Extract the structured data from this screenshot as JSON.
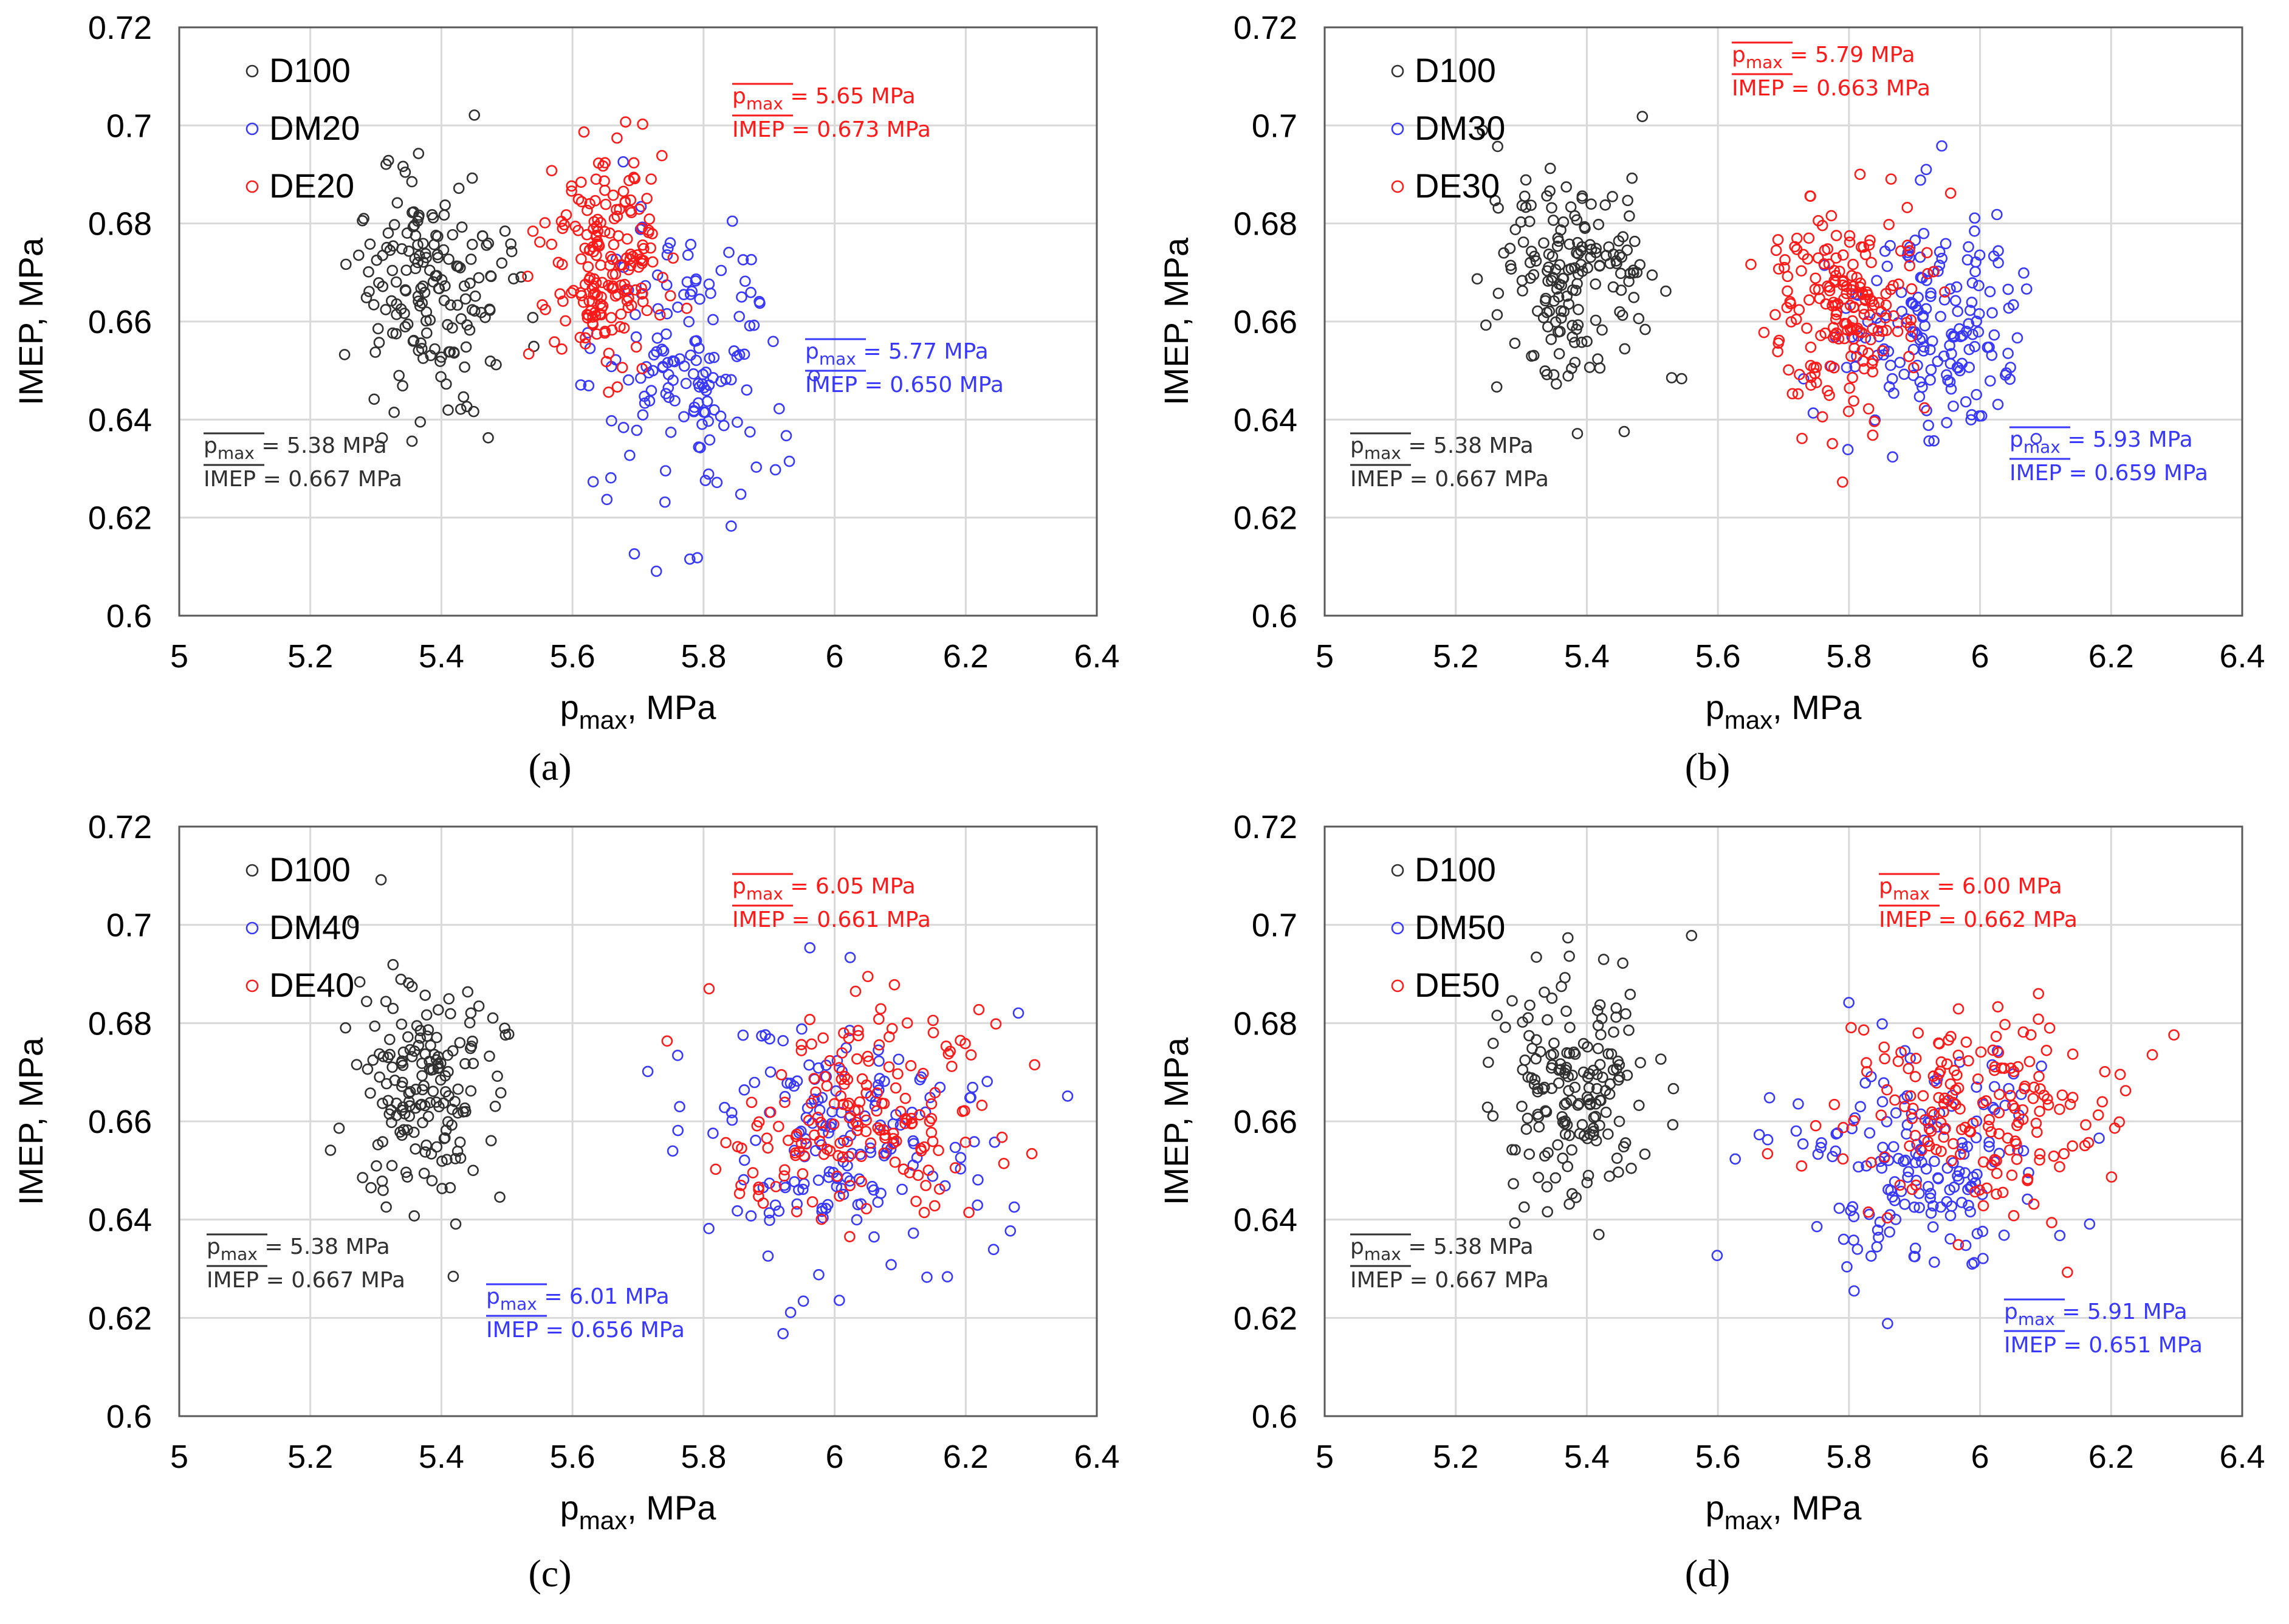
{
  "figure": {
    "colors": {
      "D100": "#303030",
      "DM": "#3838ff",
      "DE": "#ff1a1a",
      "grid": "#d9d9d9"
    }
  },
  "chart_data": [
    {
      "type": "scatter",
      "panel_label": "(a)",
      "xlabel": {
        "main": "p",
        "sub": "max",
        "rest": ", MPa"
      },
      "ylabel": "IMEP, MPa",
      "xlim": [
        5,
        6.4
      ],
      "ylim": [
        0.6,
        0.72
      ],
      "xticks": [
        "5",
        "5.2",
        "5.4",
        "5.6",
        "5.8",
        "6",
        "6.2",
        "6.4"
      ],
      "yticks": [
        "0.6",
        "0.62",
        "0.64",
        "0.66",
        "0.68",
        "0.7",
        "0.72"
      ],
      "legend_position": "top-left",
      "series": [
        {
          "name": "D100",
          "color": "#303030",
          "center": [
            5.38,
            0.667
          ],
          "spread": [
            0.06,
            0.012
          ],
          "n": 170
        },
        {
          "name": "DM20",
          "color": "#3838ff",
          "center": [
            5.77,
            0.65
          ],
          "spread": [
            0.07,
            0.014
          ],
          "n": 150
        },
        {
          "name": "DE20",
          "color": "#ff1a1a",
          "center": [
            5.65,
            0.673
          ],
          "spread": [
            0.045,
            0.011
          ],
          "n": 190
        }
      ],
      "annotations": [
        {
          "color": "#303030",
          "series": "D100",
          "pmax_label": "p",
          "pmax_sub": "max",
          "pmax_value": "= 5.38 MPa",
          "imep_label": "IMEP",
          "imep_value": "= 0.667 MPa"
        },
        {
          "color": "#3838ff",
          "series": "DM20",
          "pmax_label": "p",
          "pmax_sub": "max",
          "pmax_value": "= 5.77 MPa",
          "imep_label": "IMEP",
          "imep_value": "= 0.650 MPa"
        },
        {
          "color": "#ff1a1a",
          "series": "DE20",
          "pmax_label": "p",
          "pmax_sub": "max",
          "pmax_value": "= 5.65 MPa",
          "imep_label": "IMEP",
          "imep_value": "= 0.673 MPa"
        }
      ]
    },
    {
      "type": "scatter",
      "panel_label": "(b)",
      "xlabel": {
        "main": "p",
        "sub": "max",
        "rest": ", MPa"
      },
      "ylabel": "IMEP, MPa",
      "xlim": [
        5,
        6.4
      ],
      "ylim": [
        0.6,
        0.72
      ],
      "xticks": [
        "5",
        "5.2",
        "5.4",
        "5.6",
        "5.8",
        "6",
        "6.2",
        "6.4"
      ],
      "yticks": [
        "0.6",
        "0.62",
        "0.64",
        "0.66",
        "0.68",
        "0.7",
        "0.72"
      ],
      "legend_position": "top-left",
      "series": [
        {
          "name": "D100",
          "color": "#303030",
          "center": [
            5.38,
            0.667
          ],
          "spread": [
            0.06,
            0.012
          ],
          "n": 170
        },
        {
          "name": "DM30",
          "color": "#3838ff",
          "center": [
            5.93,
            0.659
          ],
          "spread": [
            0.07,
            0.011
          ],
          "n": 170
        },
        {
          "name": "DE30",
          "color": "#ff1a1a",
          "center": [
            5.79,
            0.663
          ],
          "spread": [
            0.06,
            0.011
          ],
          "n": 190
        }
      ],
      "annotations": [
        {
          "color": "#303030",
          "series": "D100",
          "pmax_label": "p",
          "pmax_sub": "max",
          "pmax_value": "= 5.38 MPa",
          "imep_label": "IMEP",
          "imep_value": "= 0.667 MPa"
        },
        {
          "color": "#3838ff",
          "series": "DM30",
          "pmax_label": "p",
          "pmax_sub": "max",
          "pmax_value": "= 5.93 MPa",
          "imep_label": "IMEP",
          "imep_value": "= 0.659 MPa"
        },
        {
          "color": "#ff1a1a",
          "series": "DE30",
          "pmax_label": "p",
          "pmax_sub": "max",
          "pmax_value": "= 5.79 MPa",
          "imep_label": "IMEP",
          "imep_value": "= 0.663 MPa"
        }
      ]
    },
    {
      "type": "scatter",
      "panel_label": "(c)",
      "xlabel": {
        "main": "p",
        "sub": "max",
        "rest": ", MPa"
      },
      "ylabel": "IMEP, MPa",
      "xlim": [
        5,
        6.4
      ],
      "ylim": [
        0.6,
        0.72
      ],
      "xticks": [
        "5",
        "5.2",
        "5.4",
        "5.6",
        "5.8",
        "6",
        "6.2",
        "6.4"
      ],
      "yticks": [
        "0.6",
        "0.62",
        "0.64",
        "0.66",
        "0.68",
        "0.7",
        "0.72"
      ],
      "legend_position": "top-left",
      "series": [
        {
          "name": "D100",
          "color": "#303030",
          "center": [
            5.38,
            0.667
          ],
          "spread": [
            0.06,
            0.012
          ],
          "n": 170
        },
        {
          "name": "DM40",
          "color": "#3838ff",
          "center": [
            6.01,
            0.656
          ],
          "spread": [
            0.11,
            0.013
          ],
          "n": 170
        },
        {
          "name": "DE40",
          "color": "#ff1a1a",
          "center": [
            6.05,
            0.661
          ],
          "spread": [
            0.1,
            0.011
          ],
          "n": 180
        }
      ],
      "annotations": [
        {
          "color": "#303030",
          "series": "D100",
          "pmax_label": "p",
          "pmax_sub": "max",
          "pmax_value": "= 5.38 MPa",
          "imep_label": "IMEP",
          "imep_value": "= 0.667 MPa"
        },
        {
          "color": "#3838ff",
          "series": "DM40",
          "pmax_label": "p",
          "pmax_sub": "max",
          "pmax_value": "= 6.01 MPa",
          "imep_label": "IMEP",
          "imep_value": "= 0.656 MPa"
        },
        {
          "color": "#ff1a1a",
          "series": "DE40",
          "pmax_label": "p",
          "pmax_sub": "max",
          "pmax_value": "= 6.05 MPa",
          "imep_label": "IMEP",
          "imep_value": "= 0.661 MPa"
        }
      ]
    },
    {
      "type": "scatter",
      "panel_label": "(d)",
      "xlabel": {
        "main": "p",
        "sub": "max",
        "rest": ", MPa"
      },
      "ylabel": "IMEP, MPa",
      "xlim": [
        5,
        6.4
      ],
      "ylim": [
        0.6,
        0.72
      ],
      "xticks": [
        "5",
        "5.2",
        "5.4",
        "5.6",
        "5.8",
        "6",
        "6.2",
        "6.4"
      ],
      "yticks": [
        "0.6",
        "0.62",
        "0.64",
        "0.66",
        "0.68",
        "0.7",
        "0.72"
      ],
      "legend_position": "top-left",
      "series": [
        {
          "name": "D100",
          "color": "#303030",
          "center": [
            5.38,
            0.667
          ],
          "spread": [
            0.06,
            0.012
          ],
          "n": 170
        },
        {
          "name": "DM50",
          "color": "#3838ff",
          "center": [
            5.91,
            0.651
          ],
          "spread": [
            0.1,
            0.012
          ],
          "n": 170
        },
        {
          "name": "DE50",
          "color": "#ff1a1a",
          "center": [
            6.0,
            0.662
          ],
          "spread": [
            0.1,
            0.011
          ],
          "n": 180
        }
      ],
      "annotations": [
        {
          "color": "#303030",
          "series": "D100",
          "pmax_label": "p",
          "pmax_sub": "max",
          "pmax_value": "= 5.38 MPa",
          "imep_label": "IMEP",
          "imep_value": "= 0.667 MPa"
        },
        {
          "color": "#3838ff",
          "series": "DM50",
          "pmax_label": "p",
          "pmax_sub": "max",
          "pmax_value": "= 5.91 MPa",
          "imep_label": "IMEP",
          "imep_value": "= 0.651 MPa"
        },
        {
          "color": "#ff1a1a",
          "series": "DE50",
          "pmax_label": "p",
          "pmax_sub": "max",
          "pmax_value": "= 6.00 MPa",
          "imep_label": "IMEP",
          "imep_value": "= 0.662 MPa"
        }
      ]
    }
  ]
}
